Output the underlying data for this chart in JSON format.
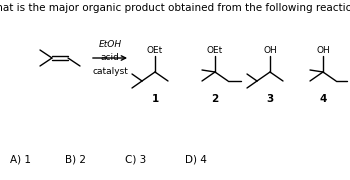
{
  "title": "What is the major organic product obtained from the following reaction?",
  "reagents_line1": "EtOH",
  "reagents_line2": "acid",
  "reagents_line3": "catalyst",
  "answer_labels": [
    "A) 1",
    "B) 2",
    "C) 3",
    "D) 4"
  ],
  "bg_color": "#ffffff",
  "text_color": "#000000",
  "font_size_title": 7.5,
  "font_size_small": 6.5,
  "font_size_num": 7.5,
  "font_size_ans": 7.5
}
